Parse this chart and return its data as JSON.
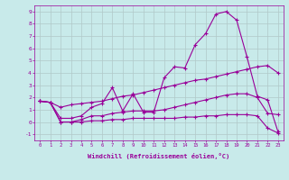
{
  "xlabel": "Windchill (Refroidissement éolien,°C)",
  "bg_color": "#c8eaea",
  "line_color": "#990099",
  "grid_color": "#b0c8c8",
  "xlim": [
    -0.5,
    23.5
  ],
  "ylim": [
    -1.5,
    9.5
  ],
  "yticks": [
    -1,
    0,
    1,
    2,
    3,
    4,
    5,
    6,
    7,
    8,
    9
  ],
  "xticks": [
    0,
    1,
    2,
    3,
    4,
    5,
    6,
    7,
    8,
    9,
    10,
    11,
    12,
    13,
    14,
    15,
    16,
    17,
    18,
    19,
    20,
    21,
    22,
    23
  ],
  "curve_main_x": [
    0,
    1,
    2,
    3,
    4,
    5,
    6,
    7,
    8,
    9,
    10,
    11,
    12,
    13,
    14,
    15,
    16,
    17,
    18,
    19,
    20,
    21,
    22,
    23
  ],
  "curve_main_y": [
    1.7,
    1.6,
    0.3,
    0.3,
    0.5,
    1.2,
    1.5,
    2.8,
    0.9,
    2.3,
    0.8,
    0.8,
    3.6,
    4.5,
    4.4,
    6.3,
    7.2,
    8.8,
    9.0,
    8.3,
    5.3,
    2.1,
    1.8,
    -0.8
  ],
  "curve_diag_x": [
    0,
    1,
    2,
    3,
    4,
    5,
    6,
    7,
    8,
    9,
    10,
    11,
    12,
    13,
    14,
    15,
    16,
    17,
    18,
    19,
    20,
    21,
    22,
    23
  ],
  "curve_diag_y": [
    1.7,
    1.6,
    1.2,
    1.4,
    1.5,
    1.6,
    1.7,
    1.9,
    2.1,
    2.2,
    2.4,
    2.6,
    2.8,
    3.0,
    3.2,
    3.4,
    3.5,
    3.7,
    3.9,
    4.1,
    4.3,
    4.5,
    4.6,
    4.0
  ],
  "curve_mid_x": [
    0,
    1,
    2,
    3,
    4,
    5,
    6,
    7,
    8,
    9,
    10,
    11,
    12,
    13,
    14,
    15,
    16,
    17,
    18,
    19,
    20,
    21,
    22,
    23
  ],
  "curve_mid_y": [
    1.7,
    1.6,
    0.0,
    0.0,
    0.2,
    0.5,
    0.5,
    0.7,
    0.8,
    0.9,
    0.9,
    0.9,
    1.0,
    1.2,
    1.4,
    1.6,
    1.8,
    2.0,
    2.2,
    2.3,
    2.3,
    2.0,
    0.7,
    0.6
  ],
  "curve_low_x": [
    0,
    1,
    2,
    3,
    4,
    5,
    6,
    7,
    8,
    9,
    10,
    11,
    12,
    13,
    14,
    15,
    16,
    17,
    18,
    19,
    20,
    21,
    22,
    23
  ],
  "curve_low_y": [
    1.7,
    1.6,
    0.0,
    0.0,
    0.0,
    0.1,
    0.1,
    0.2,
    0.2,
    0.3,
    0.3,
    0.3,
    0.3,
    0.3,
    0.4,
    0.4,
    0.5,
    0.5,
    0.6,
    0.6,
    0.6,
    0.5,
    -0.5,
    -0.9
  ]
}
